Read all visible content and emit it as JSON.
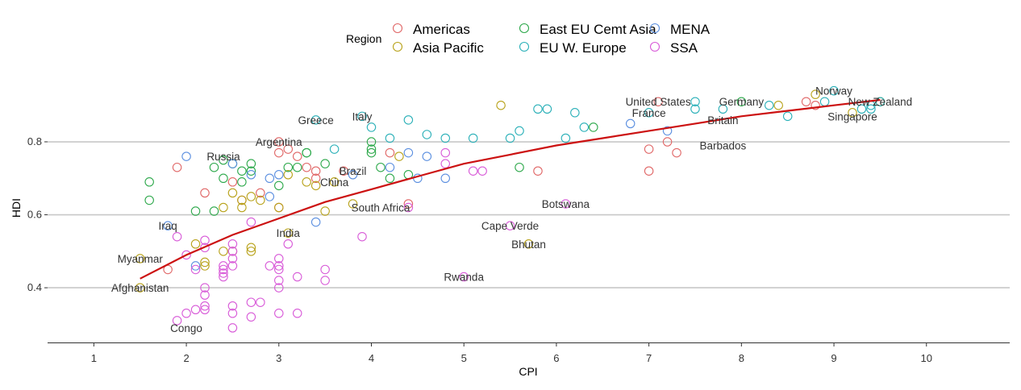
{
  "chart_data": {
    "type": "scatter",
    "title": "",
    "xlabel": "CPI",
    "ylabel": "HDI",
    "xlim": [
      0.5,
      10.9
    ],
    "ylim": [
      0.25,
      0.99
    ],
    "x_ticks": [
      1,
      2,
      3,
      4,
      5,
      6,
      7,
      8,
      9,
      10
    ],
    "y_ticks": [
      0.4,
      0.6,
      0.8
    ],
    "grid": "horizontal",
    "legend": {
      "title": "Region",
      "placement": "top"
    },
    "series": [
      {
        "name": "Americas",
        "color": "#e06666",
        "points": [
          [
            1.9,
            0.73
          ],
          [
            2.2,
            0.66
          ],
          [
            2.5,
            0.69
          ],
          [
            2.6,
            0.64
          ],
          [
            2.8,
            0.66
          ],
          [
            3.0,
            0.77
          ],
          [
            3.0,
            0.8
          ],
          [
            3.1,
            0.78
          ],
          [
            3.2,
            0.76
          ],
          [
            3.3,
            0.73
          ],
          [
            3.4,
            0.72
          ],
          [
            3.4,
            0.7
          ],
          [
            3.7,
            0.72
          ],
          [
            4.2,
            0.77
          ],
          [
            4.4,
            0.63
          ],
          [
            1.8,
            0.45
          ],
          [
            5.8,
            0.72
          ],
          [
            7.0,
            0.72
          ],
          [
            7.0,
            0.78
          ],
          [
            7.2,
            0.8
          ],
          [
            7.3,
            0.77
          ],
          [
            7.1,
            0.91
          ],
          [
            8.7,
            0.91
          ],
          [
            8.8,
            0.9
          ],
          [
            3.0,
            0.62
          ]
        ]
      },
      {
        "name": "Asia Pacific",
        "color": "#b8a21a",
        "points": [
          [
            1.5,
            0.48
          ],
          [
            1.5,
            0.4
          ],
          [
            2.1,
            0.52
          ],
          [
            2.2,
            0.46
          ],
          [
            2.2,
            0.47
          ],
          [
            2.4,
            0.5
          ],
          [
            2.4,
            0.62
          ],
          [
            2.5,
            0.5
          ],
          [
            2.5,
            0.66
          ],
          [
            2.6,
            0.62
          ],
          [
            2.6,
            0.64
          ],
          [
            2.7,
            0.5
          ],
          [
            2.7,
            0.51
          ],
          [
            2.7,
            0.65
          ],
          [
            2.8,
            0.64
          ],
          [
            3.0,
            0.62
          ],
          [
            3.1,
            0.55
          ],
          [
            3.1,
            0.71
          ],
          [
            3.3,
            0.69
          ],
          [
            3.4,
            0.68
          ],
          [
            3.5,
            0.61
          ],
          [
            3.6,
            0.69
          ],
          [
            3.8,
            0.63
          ],
          [
            4.3,
            0.76
          ],
          [
            5.4,
            0.9
          ],
          [
            5.7,
            0.52
          ],
          [
            8.4,
            0.9
          ],
          [
            9.2,
            0.88
          ],
          [
            9.5,
            0.91
          ],
          [
            8.8,
            0.93
          ]
        ]
      },
      {
        "name": "East EU Cemt Asia",
        "color": "#2ca84a",
        "points": [
          [
            1.6,
            0.69
          ],
          [
            1.6,
            0.64
          ],
          [
            2.1,
            0.61
          ],
          [
            2.3,
            0.73
          ],
          [
            2.3,
            0.61
          ],
          [
            2.4,
            0.7
          ],
          [
            2.4,
            0.75
          ],
          [
            2.5,
            0.74
          ],
          [
            2.6,
            0.72
          ],
          [
            2.6,
            0.69
          ],
          [
            2.7,
            0.74
          ],
          [
            2.7,
            0.72
          ],
          [
            3.0,
            0.68
          ],
          [
            3.1,
            0.73
          ],
          [
            3.2,
            0.73
          ],
          [
            3.3,
            0.77
          ],
          [
            3.3,
            0.77
          ],
          [
            3.5,
            0.74
          ],
          [
            4.0,
            0.8
          ],
          [
            4.0,
            0.78
          ],
          [
            4.0,
            0.77
          ],
          [
            4.1,
            0.73
          ],
          [
            4.2,
            0.7
          ],
          [
            4.4,
            0.71
          ],
          [
            5.6,
            0.73
          ],
          [
            6.4,
            0.84
          ],
          [
            8.0,
            0.91
          ]
        ]
      },
      {
        "name": "EU W. Europe",
        "color": "#2ab0b8",
        "points": [
          [
            3.4,
            0.86
          ],
          [
            3.6,
            0.78
          ],
          [
            3.9,
            0.87
          ],
          [
            4.0,
            0.84
          ],
          [
            4.2,
            0.81
          ],
          [
            4.4,
            0.86
          ],
          [
            4.6,
            0.82
          ],
          [
            4.8,
            0.81
          ],
          [
            5.1,
            0.81
          ],
          [
            5.5,
            0.81
          ],
          [
            5.6,
            0.83
          ],
          [
            5.8,
            0.89
          ],
          [
            5.9,
            0.89
          ],
          [
            6.1,
            0.81
          ],
          [
            6.2,
            0.88
          ],
          [
            6.3,
            0.84
          ],
          [
            7.0,
            0.88
          ],
          [
            7.5,
            0.89
          ],
          [
            7.5,
            0.91
          ],
          [
            7.8,
            0.89
          ],
          [
            8.3,
            0.9
          ],
          [
            8.5,
            0.87
          ],
          [
            8.9,
            0.91
          ],
          [
            9.0,
            0.94
          ],
          [
            9.3,
            0.89
          ],
          [
            9.4,
            0.89
          ],
          [
            9.4,
            0.9
          ],
          [
            9.5,
            0.91
          ]
        ]
      },
      {
        "name": "MENA",
        "color": "#5b8fe0",
        "points": [
          [
            1.8,
            0.57
          ],
          [
            2.0,
            0.76
          ],
          [
            2.1,
            0.46
          ],
          [
            2.5,
            0.74
          ],
          [
            2.7,
            0.71
          ],
          [
            2.9,
            0.7
          ],
          [
            2.9,
            0.65
          ],
          [
            3.0,
            0.71
          ],
          [
            3.4,
            0.58
          ],
          [
            3.8,
            0.71
          ],
          [
            4.2,
            0.73
          ],
          [
            4.4,
            0.77
          ],
          [
            4.5,
            0.7
          ],
          [
            4.6,
            0.76
          ],
          [
            4.8,
            0.7
          ],
          [
            6.8,
            0.85
          ],
          [
            7.2,
            0.83
          ]
        ]
      },
      {
        "name": "SSA",
        "color": "#d85ad8",
        "points": [
          [
            1.9,
            0.31
          ],
          [
            1.9,
            0.54
          ],
          [
            2.0,
            0.49
          ],
          [
            2.0,
            0.33
          ],
          [
            2.1,
            0.34
          ],
          [
            2.1,
            0.45
          ],
          [
            2.2,
            0.53
          ],
          [
            2.2,
            0.34
          ],
          [
            2.2,
            0.35
          ],
          [
            2.2,
            0.38
          ],
          [
            2.2,
            0.4
          ],
          [
            2.2,
            0.51
          ],
          [
            2.4,
            0.46
          ],
          [
            2.4,
            0.45
          ],
          [
            2.4,
            0.44
          ],
          [
            2.4,
            0.43
          ],
          [
            2.5,
            0.29
          ],
          [
            2.5,
            0.33
          ],
          [
            2.5,
            0.35
          ],
          [
            2.5,
            0.46
          ],
          [
            2.5,
            0.48
          ],
          [
            2.5,
            0.5
          ],
          [
            2.5,
            0.52
          ],
          [
            2.7,
            0.32
          ],
          [
            2.7,
            0.36
          ],
          [
            2.7,
            0.58
          ],
          [
            2.8,
            0.36
          ],
          [
            2.9,
            0.46
          ],
          [
            3.0,
            0.33
          ],
          [
            3.0,
            0.4
          ],
          [
            3.0,
            0.42
          ],
          [
            3.0,
            0.45
          ],
          [
            3.0,
            0.46
          ],
          [
            3.0,
            0.48
          ],
          [
            3.1,
            0.52
          ],
          [
            3.2,
            0.43
          ],
          [
            3.2,
            0.33
          ],
          [
            3.5,
            0.45
          ],
          [
            3.5,
            0.42
          ],
          [
            3.9,
            0.54
          ],
          [
            4.4,
            0.62
          ],
          [
            4.8,
            0.74
          ],
          [
            4.8,
            0.77
          ],
          [
            5.0,
            0.43
          ],
          [
            5.1,
            0.72
          ],
          [
            5.2,
            0.72
          ],
          [
            5.5,
            0.57
          ],
          [
            6.1,
            0.63
          ]
        ]
      }
    ],
    "trend": {
      "name": "",
      "color": "#cc1111",
      "points": [
        [
          1.5,
          0.425
        ],
        [
          2.0,
          0.49
        ],
        [
          2.5,
          0.545
        ],
        [
          3.0,
          0.59
        ],
        [
          3.5,
          0.635
        ],
        [
          4.0,
          0.67
        ],
        [
          4.5,
          0.705
        ],
        [
          5.0,
          0.74
        ],
        [
          5.5,
          0.765
        ],
        [
          6.0,
          0.79
        ],
        [
          6.5,
          0.81
        ],
        [
          7.0,
          0.83
        ],
        [
          7.5,
          0.85
        ],
        [
          8.0,
          0.87
        ],
        [
          8.5,
          0.885
        ],
        [
          9.0,
          0.9
        ],
        [
          9.5,
          0.915
        ]
      ]
    },
    "annotations": [
      {
        "text": "Norway",
        "x": 9.0,
        "y": 0.94
      },
      {
        "text": "New Zealand",
        "x": 9.5,
        "y": 0.91
      },
      {
        "text": "Singapore",
        "x": 9.2,
        "y": 0.87
      },
      {
        "text": "United States",
        "x": 7.1,
        "y": 0.91
      },
      {
        "text": "France",
        "x": 7.0,
        "y": 0.88
      },
      {
        "text": "Germany",
        "x": 8.0,
        "y": 0.91
      },
      {
        "text": "Britain",
        "x": 7.8,
        "y": 0.86
      },
      {
        "text": "Barbados",
        "x": 7.8,
        "y": 0.79
      },
      {
        "text": "Greece",
        "x": 3.4,
        "y": 0.86
      },
      {
        "text": "Italy",
        "x": 3.9,
        "y": 0.87
      },
      {
        "text": "Argentina",
        "x": 3.0,
        "y": 0.8
      },
      {
        "text": "Russia",
        "x": 2.4,
        "y": 0.76
      },
      {
        "text": "Brazil",
        "x": 3.8,
        "y": 0.72
      },
      {
        "text": "China",
        "x": 3.6,
        "y": 0.69
      },
      {
        "text": "South Africa",
        "x": 4.1,
        "y": 0.62
      },
      {
        "text": "Botswana",
        "x": 6.1,
        "y": 0.63
      },
      {
        "text": "Cape Verde",
        "x": 5.5,
        "y": 0.57
      },
      {
        "text": "Bhutan",
        "x": 5.7,
        "y": 0.52
      },
      {
        "text": "India",
        "x": 3.1,
        "y": 0.55
      },
      {
        "text": "Iraq",
        "x": 1.8,
        "y": 0.57
      },
      {
        "text": "Myanmar",
        "x": 1.5,
        "y": 0.48
      },
      {
        "text": "Afghanistan",
        "x": 1.5,
        "y": 0.4
      },
      {
        "text": "Congo",
        "x": 2.0,
        "y": 0.29
      },
      {
        "text": "Rwanda",
        "x": 5.0,
        "y": 0.43
      }
    ]
  }
}
